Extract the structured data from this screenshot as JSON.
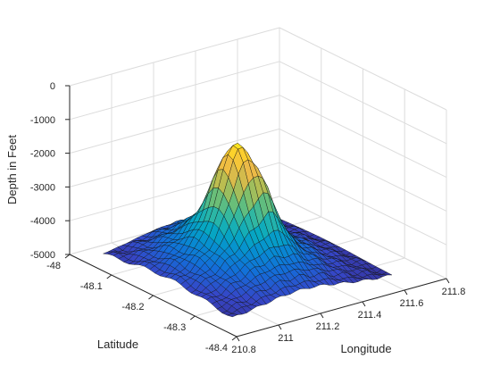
{
  "chart_data": {
    "type": "surface",
    "title": "",
    "xlabel": "Longitude",
    "ylabel": "Latitude",
    "zlabel": "Depth in Feet",
    "xlim": [
      210.8,
      211.8
    ],
    "ylim": [
      -48.4,
      -48.0
    ],
    "zlim": [
      -5000,
      0
    ],
    "x_ticks": [
      210.8,
      211,
      211.2,
      211.4,
      211.6,
      211.8
    ],
    "x_tick_labels": [
      "210.8",
      "211",
      "211.2",
      "211.4",
      "211.6",
      "211.8"
    ],
    "y_ticks": [
      -48,
      -48.1,
      -48.2,
      -48.3,
      -48.4
    ],
    "y_tick_labels": [
      "-48",
      "-48.1",
      "-48.2",
      "-48.3",
      "-48.4"
    ],
    "z_ticks": [
      0,
      -1000,
      -2000,
      -3000,
      -4000,
      -5000
    ],
    "z_tick_labels": [
      "0",
      "-1000",
      "-2000",
      "-3000",
      "-4000",
      "-5000"
    ],
    "grid": true,
    "colormap": "parula",
    "surface": {
      "x_start": 210.86,
      "x_end": 211.62,
      "x_count": 34,
      "y_start": -48.36,
      "y_end": -48.05,
      "y_count": 26,
      "base_depth": -4850,
      "peak": {
        "x": 211.19,
        "y": -48.2,
        "depth": -1000
      },
      "ridge": {
        "x": 211.26,
        "y": -48.24,
        "depth": -2300
      },
      "shoulder": {
        "x": 211.32,
        "y": -48.14,
        "depth": -3800
      }
    }
  }
}
